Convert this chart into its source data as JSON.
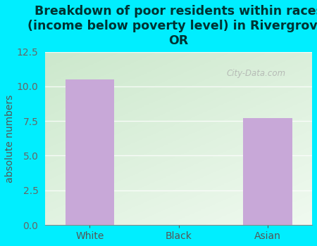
{
  "categories": [
    "White",
    "Black",
    "Asian"
  ],
  "values": [
    10.5,
    0,
    7.7
  ],
  "bar_color": "#c8a8d8",
  "title": "Breakdown of poor residents within races\n(income below poverty level) in Rivergrove,\nOR",
  "ylabel": "absolute numbers",
  "ylim": [
    0,
    12.5
  ],
  "yticks": [
    0,
    2.5,
    5.0,
    7.5,
    10.0,
    12.5
  ],
  "background_color": "#00eeff",
  "title_fontsize": 12.5,
  "ylabel_fontsize": 10,
  "tick_fontsize": 10,
  "bar_width": 0.55,
  "watermark": "City-Data.com"
}
